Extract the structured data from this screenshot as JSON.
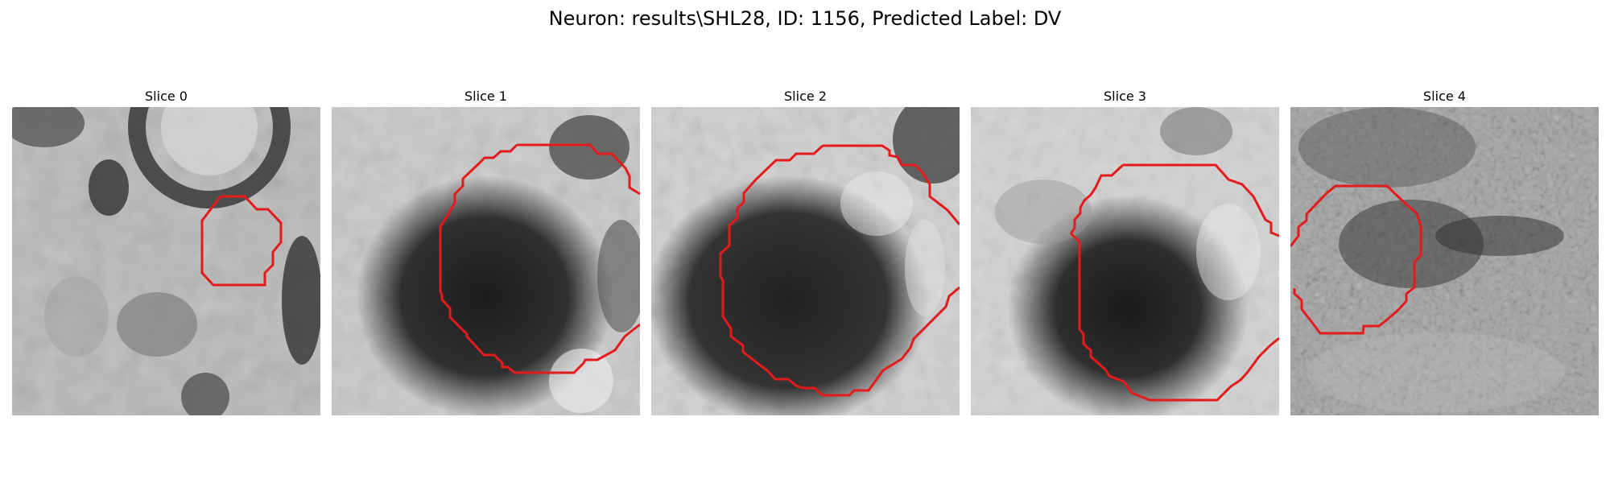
{
  "figure": {
    "title": "Neuron: results\\SHL28, ID: 1156, Predicted Label: DV"
  },
  "panels": [
    {
      "title": "Slice 0"
    },
    {
      "title": "Slice 1"
    },
    {
      "title": "Slice 2"
    },
    {
      "title": "Slice 3"
    },
    {
      "title": "Slice 4"
    }
  ],
  "colors": {
    "outline": "#e41a1c",
    "background": "#ffffff"
  }
}
